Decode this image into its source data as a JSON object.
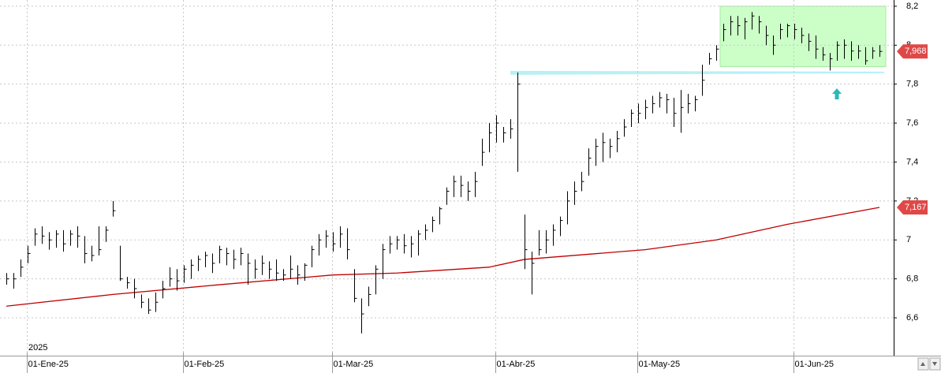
{
  "chart_data": {
    "type": "ohlc",
    "year_label": "2025",
    "categories": [
      null,
      null,
      null,
      "01-Ene-25",
      null,
      null,
      null,
      null,
      null,
      null,
      null,
      null,
      null,
      null,
      null,
      null,
      null,
      null,
      null,
      null,
      null,
      null,
      null,
      null,
      null,
      "01-Feb-25",
      null,
      null,
      null,
      null,
      null,
      null,
      null,
      null,
      null,
      null,
      null,
      null,
      null,
      null,
      null,
      null,
      null,
      null,
      null,
      null,
      "01-Mar-25",
      null,
      null,
      null,
      null,
      null,
      null,
      null,
      null,
      null,
      null,
      null,
      null,
      null,
      null,
      null,
      null,
      null,
      null,
      null,
      null,
      null,
      null,
      "01-Abr-25",
      null,
      null,
      null,
      null,
      null,
      null,
      null,
      null,
      null,
      null,
      null,
      null,
      null,
      null,
      null,
      null,
      null,
      null,
      null,
      "01-May-25",
      null,
      null,
      null,
      null,
      null,
      null,
      null,
      null,
      null,
      null,
      null,
      null,
      null,
      null,
      null,
      null,
      null,
      null,
      null,
      null,
      null,
      "01-Jun-25",
      null,
      null,
      null,
      null,
      null,
      null,
      null,
      null,
      null,
      null,
      null,
      null
    ],
    "high": [
      6.83,
      6.83,
      6.9,
      6.97,
      7.06,
      7.07,
      7.04,
      7.05,
      7.05,
      7.05,
      7.07,
      7.02,
      6.97,
      7.07,
      7.07,
      7.2,
      6.97,
      6.81,
      6.8,
      6.72,
      6.7,
      6.73,
      6.79,
      6.86,
      6.85,
      6.87,
      6.9,
      6.92,
      6.94,
      6.93,
      6.97,
      6.96,
      6.95,
      6.96,
      6.93,
      6.9,
      6.92,
      6.89,
      6.9,
      6.85,
      6.92,
      6.87,
      6.88,
      6.97,
      7.03,
      7.05,
      7.04,
      7.07,
      7.06,
      6.85,
      6.7,
      6.76,
      6.87,
      6.98,
      7.02,
      7.02,
      7.03,
      7.02,
      7.05,
      7.08,
      7.12,
      7.17,
      7.27,
      7.33,
      7.33,
      7.3,
      7.35,
      7.52,
      7.6,
      7.64,
      7.58,
      7.62,
      7.86,
      7.13,
      6.94,
      7.05,
      7.05,
      7.08,
      7.12,
      7.25,
      7.3,
      7.35,
      7.47,
      7.52,
      7.55,
      7.52,
      7.56,
      7.62,
      7.67,
      7.7,
      7.72,
      7.74,
      7.76,
      7.75,
      7.73,
      7.77,
      7.75,
      7.74,
      7.9,
      7.96,
      8.0,
      8.11,
      8.15,
      8.15,
      8.14,
      8.17,
      8.15,
      8.1,
      8.05,
      8.11,
      8.11,
      8.11,
      8.09,
      8.06,
      8.05,
      7.99,
      7.96,
      8.02,
      8.03,
      8.02,
      8.0,
      7.99,
      7.99,
      8.0
    ],
    "low": [
      6.77,
      6.75,
      6.81,
      6.88,
      6.97,
      6.98,
      6.95,
      6.96,
      6.94,
      6.97,
      6.96,
      6.88,
      6.89,
      6.92,
      6.99,
      7.12,
      6.79,
      6.75,
      6.7,
      6.65,
      6.62,
      6.63,
      6.7,
      6.76,
      6.74,
      6.78,
      6.8,
      6.84,
      6.86,
      6.83,
      6.88,
      6.87,
      6.85,
      6.87,
      6.77,
      6.8,
      6.82,
      6.8,
      6.79,
      6.79,
      6.8,
      6.77,
      6.79,
      6.86,
      6.92,
      6.96,
      6.94,
      6.96,
      6.9,
      6.68,
      6.52,
      6.66,
      6.72,
      6.8,
      6.93,
      6.95,
      6.93,
      6.91,
      6.92,
      7.0,
      7.04,
      7.08,
      7.18,
      7.22,
      7.22,
      7.2,
      7.22,
      7.38,
      7.45,
      7.5,
      7.5,
      7.52,
      7.35,
      6.85,
      6.72,
      6.92,
      6.93,
      6.97,
      7.02,
      7.08,
      7.18,
      7.25,
      7.33,
      7.38,
      7.4,
      7.42,
      7.45,
      7.53,
      7.58,
      7.6,
      7.62,
      7.65,
      7.68,
      7.65,
      7.58,
      7.55,
      7.65,
      7.66,
      7.74,
      7.9,
      7.92,
      8.02,
      8.05,
      8.05,
      8.03,
      8.08,
      8.06,
      8.0,
      7.95,
      8.03,
      8.04,
      8.03,
      8.01,
      7.97,
      7.93,
      7.92,
      7.87,
      7.92,
      7.93,
      7.92,
      7.93,
      7.9,
      7.93,
      7.94
    ],
    "close": [
      6.8,
      6.8,
      6.86,
      6.93,
      7.03,
      7.02,
      7.0,
      7.03,
      6.98,
      7.03,
      7.02,
      6.93,
      6.92,
      6.95,
      7.05,
      7.15,
      6.8,
      6.78,
      6.75,
      6.68,
      6.64,
      6.68,
      6.75,
      6.8,
      6.79,
      6.85,
      6.87,
      6.9,
      6.92,
      6.88,
      6.95,
      6.93,
      6.9,
      6.93,
      6.88,
      6.85,
      6.88,
      6.85,
      6.83,
      6.82,
      6.85,
      6.82,
      6.87,
      6.95,
      7.0,
      7.02,
      6.98,
      7.03,
      6.95,
      6.7,
      6.62,
      6.72,
      6.85,
      6.95,
      6.98,
      7.0,
      6.97,
      6.98,
      7.03,
      7.05,
      7.1,
      7.16,
      7.25,
      7.3,
      7.28,
      7.25,
      7.3,
      7.45,
      7.55,
      7.6,
      7.55,
      7.57,
      7.8,
      6.95,
      6.88,
      6.95,
      7.0,
      7.05,
      7.1,
      7.2,
      7.25,
      7.3,
      7.42,
      7.48,
      7.5,
      7.48,
      7.52,
      7.58,
      7.65,
      7.65,
      7.68,
      7.7,
      7.73,
      7.72,
      7.65,
      7.68,
      7.7,
      7.72,
      7.82,
      7.93,
      7.98,
      8.08,
      8.12,
      8.1,
      8.12,
      8.15,
      8.12,
      8.05,
      8.0,
      8.08,
      8.1,
      8.08,
      8.05,
      8.02,
      7.98,
      7.95,
      7.93,
      8.0,
      8.0,
      7.97,
      7.97,
      7.92,
      7.97,
      7.968
    ],
    "bar_color": "#000000",
    "moving_average": {
      "color": "#c00000",
      "x": [
        0,
        15,
        30,
        46,
        55,
        68,
        73,
        90,
        100,
        110,
        123
      ],
      "values": [
        6.66,
        6.72,
        6.77,
        6.82,
        6.83,
        6.86,
        6.9,
        6.95,
        7.0,
        7.08,
        7.167
      ]
    },
    "price_labels": [
      {
        "value": 7.968,
        "label": "7,968"
      },
      {
        "value": 7.167,
        "label": "7,167"
      }
    ],
    "price_label_color": "#e04848",
    "zone": {
      "start": 101,
      "end": 123,
      "ylim": [
        7.89,
        8.2
      ],
      "color": "#ccffc8"
    },
    "band": {
      "value": 7.86,
      "start": 71,
      "end": 123,
      "color": "#b8f0f5"
    },
    "arrow": {
      "index": 117,
      "value": 7.75,
      "color": "#2cb8b8"
    },
    "ylim": [
      6.422,
      8.232
    ],
    "yticks": [
      {
        "value": 6.6,
        "label": "6,6"
      },
      {
        "value": 6.8,
        "label": "6,8"
      },
      7,
      {
        "value": 7.2,
        "label": "7,2"
      },
      {
        "value": 7.4,
        "label": "7,4"
      },
      {
        "value": 7.6,
        "label": "7,6"
      },
      {
        "value": 7.8,
        "label": "7,8"
      },
      8,
      {
        "value": 8.2,
        "label": "8,2"
      }
    ],
    "grid": true
  }
}
